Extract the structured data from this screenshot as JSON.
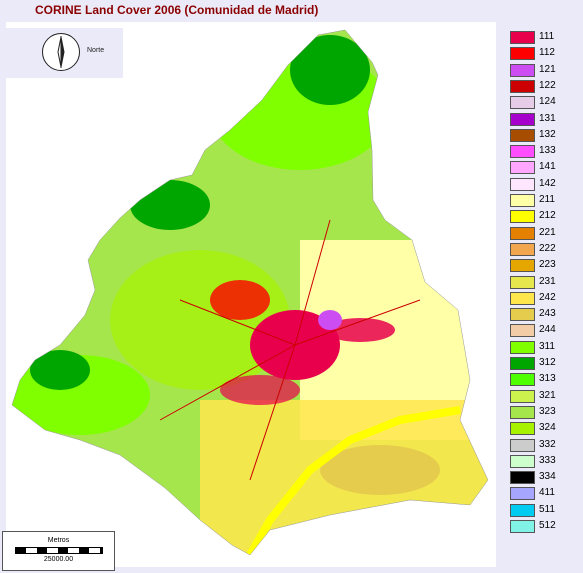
{
  "title": "CORINE Land Cover 2006 (Comunidad de Madrid)",
  "north_label": "Norte",
  "scale": {
    "top_label": "Metros",
    "bottom_label": "25000.00"
  },
  "legend": [
    {
      "code": "111",
      "color": "#e8004d"
    },
    {
      "code": "112",
      "color": "#ff0000"
    },
    {
      "code": "121",
      "color": "#cc4df2"
    },
    {
      "code": "122",
      "color": "#cc0000"
    },
    {
      "code": "124",
      "color": "#e6cce6"
    },
    {
      "code": "131",
      "color": "#a600cc"
    },
    {
      "code": "132",
      "color": "#a64d00"
    },
    {
      "code": "133",
      "color": "#ff4dff"
    },
    {
      "code": "141",
      "color": "#ffa6ff"
    },
    {
      "code": "142",
      "color": "#ffe6ff"
    },
    {
      "code": "211",
      "color": "#ffffa8"
    },
    {
      "code": "212",
      "color": "#ffff00"
    },
    {
      "code": "221",
      "color": "#e68000"
    },
    {
      "code": "222",
      "color": "#f2a64d"
    },
    {
      "code": "223",
      "color": "#e6a600"
    },
    {
      "code": "231",
      "color": "#e6e64d"
    },
    {
      "code": "242",
      "color": "#ffe64d"
    },
    {
      "code": "243",
      "color": "#e6cc4d"
    },
    {
      "code": "244",
      "color": "#f2cca6"
    },
    {
      "code": "311",
      "color": "#80ff00"
    },
    {
      "code": "312",
      "color": "#00a600"
    },
    {
      "code": "313",
      "color": "#4dff00"
    },
    {
      "code": "321",
      "color": "#ccf24d"
    },
    {
      "code": "323",
      "color": "#a6e64d"
    },
    {
      "code": "324",
      "color": "#a6f200"
    },
    {
      "code": "332",
      "color": "#cccccc"
    },
    {
      "code": "333",
      "color": "#ccffcc"
    },
    {
      "code": "334",
      "color": "#000000"
    },
    {
      "code": "411",
      "color": "#a6a6ff"
    },
    {
      "code": "511",
      "color": "#00ccf2"
    },
    {
      "code": "512",
      "color": "#80f2e6"
    }
  ]
}
